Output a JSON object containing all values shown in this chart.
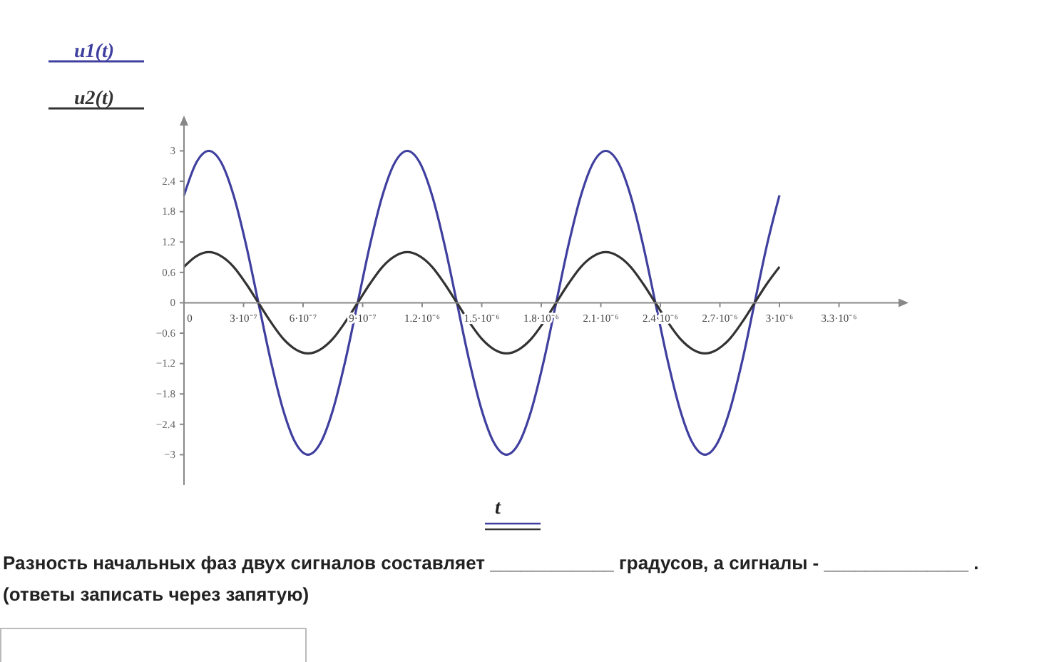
{
  "chart_data": {
    "type": "line",
    "xlabel": "t",
    "legend": "top left",
    "marker": "none",
    "line_style": "solid",
    "grid": false,
    "x": [
      0,
      6.25e-08,
      1.25e-07,
      1.875e-07,
      2.5e-07,
      3.125e-07,
      3.75e-07,
      4.375e-07,
      5e-07,
      5.625e-07,
      6.25e-07,
      6.875e-07,
      7.5e-07,
      8.125e-07,
      8.75e-07,
      9.375e-07,
      1e-06,
      1.0625e-06,
      1.125e-06,
      1.1875e-06,
      1.25e-06,
      1.3125e-06,
      1.375e-06,
      1.4375e-06,
      1.5e-06,
      1.5625e-06,
      1.625e-06,
      1.6875e-06,
      1.75e-06,
      1.8125e-06,
      1.875e-06,
      1.9375e-06,
      2e-06,
      2.0625e-06,
      2.125e-06,
      2.1875e-06,
      2.25e-06,
      2.3125e-06,
      2.375e-06,
      2.4375e-06,
      2.5e-06,
      2.5625e-06,
      2.625e-06,
      2.6875e-06,
      2.75e-06,
      2.8125e-06,
      2.875e-06,
      2.9375e-06,
      3e-06
    ],
    "series": [
      {
        "name": "u1(t)",
        "color": "#3f3f9f",
        "values": [
          2.12,
          2.77,
          3,
          2.77,
          2.12,
          1.15,
          0,
          -1.15,
          -2.12,
          -2.77,
          -3,
          -2.77,
          -2.12,
          -1.15,
          0,
          1.15,
          2.12,
          2.77,
          3,
          2.77,
          2.12,
          1.15,
          0,
          -1.15,
          -2.12,
          -2.77,
          -3,
          -2.77,
          -2.12,
          -1.15,
          0,
          1.15,
          2.12,
          2.77,
          3,
          2.77,
          2.12,
          1.15,
          0,
          -1.15,
          -2.12,
          -2.77,
          -3,
          -2.77,
          -2.12,
          -1.15,
          0,
          1.15,
          2.12
        ]
      },
      {
        "name": "u2(t)",
        "color": "#333333",
        "values": [
          0.71,
          0.92,
          1,
          0.92,
          0.71,
          0.38,
          0,
          -0.38,
          -0.71,
          -0.92,
          -1,
          -0.92,
          -0.71,
          -0.38,
          0,
          0.38,
          0.71,
          0.92,
          1,
          0.92,
          0.71,
          0.38,
          0,
          -0.38,
          -0.71,
          -0.92,
          -1,
          -0.92,
          -0.71,
          -0.38,
          0,
          0.38,
          0.71,
          0.92,
          1,
          0.92,
          0.71,
          0.38,
          0,
          -0.38,
          -0.71,
          -0.92,
          -1,
          -0.92,
          -0.71,
          -0.38,
          0,
          0.38,
          0.71
        ]
      }
    ],
    "xlim": [
      0,
      3.6e-06
    ],
    "xticks": [
      0,
      {
        "value": 3e-07,
        "label": "3·10⁻⁷"
      },
      {
        "value": 6e-07,
        "label": "6·10⁻⁷"
      },
      {
        "value": 9e-07,
        "label": "9·10⁻⁷"
      },
      {
        "value": 1.2e-06,
        "label": "1.2·10⁻⁶"
      },
      {
        "value": 1.5e-06,
        "label": "1.5·10⁻⁶"
      },
      {
        "value": 1.8e-06,
        "label": "1.8·10⁻⁶"
      },
      {
        "value": 2.1e-06,
        "label": "2.1·10⁻⁶"
      },
      {
        "value": 2.4e-06,
        "label": "2.4·10⁻⁶"
      },
      {
        "value": 2.7e-06,
        "label": "2.7·10⁻⁶"
      },
      {
        "value": 3e-06,
        "label": "3·10⁻⁶"
      },
      {
        "value": 3.3e-06,
        "label": "3.3·10⁻⁶"
      }
    ],
    "ylim": [
      -3.6,
      3.5
    ],
    "yticks": [
      -3,
      -2.4,
      -1.8,
      -1.2,
      -0.6,
      0,
      0.6,
      1.2,
      1.8,
      2.4,
      3
    ],
    "annotations": [
      "Разность начальных фаз двух сигналов составляет ____________ градусов, а сигналы -  ______________ . (ответы записать через запятую)"
    ]
  }
}
